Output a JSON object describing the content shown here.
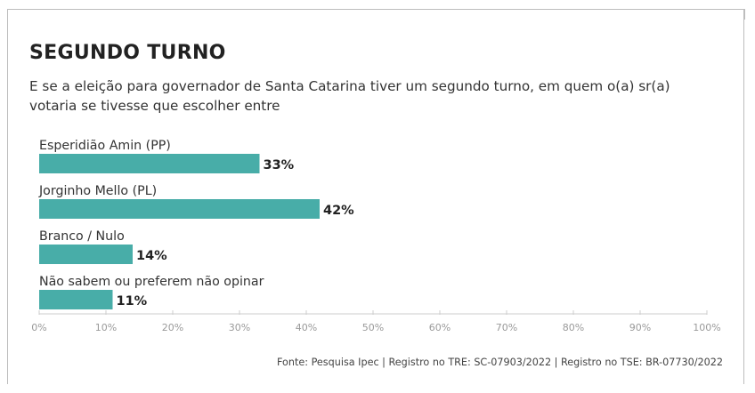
{
  "heading": {
    "title": "SEGUNDO TURNO",
    "subtitle": "E se a eleição para governador de Santa Catarina tiver um segundo turno, em quem o(a) sr(a) votaria se tivesse que escolher entre"
  },
  "chart_data": {
    "type": "bar",
    "orientation": "horizontal",
    "categories": [
      "Esperidião Amin (PP)",
      "Jorginho Mello (PL)",
      "Branco / Nulo",
      "Não sabem ou preferem não opinar"
    ],
    "values": [
      33,
      42,
      14,
      11
    ],
    "value_labels": [
      "33%",
      "42%",
      "14%",
      "11%"
    ],
    "xlim": [
      0,
      100
    ],
    "x_ticks": [
      0,
      10,
      20,
      30,
      40,
      50,
      60,
      70,
      80,
      90,
      100
    ],
    "x_tick_labels": [
      "0%",
      "10%",
      "20%",
      "30%",
      "40%",
      "50%",
      "60%",
      "70%",
      "80%",
      "90%",
      "100%"
    ],
    "grid": false,
    "bar_color": "#48ada8"
  },
  "footer": {
    "source": "Fonte: Pesquisa Ipec | Registro no TRE: SC-07903/2022 | Registro no TSE: BR-07730/2022"
  }
}
